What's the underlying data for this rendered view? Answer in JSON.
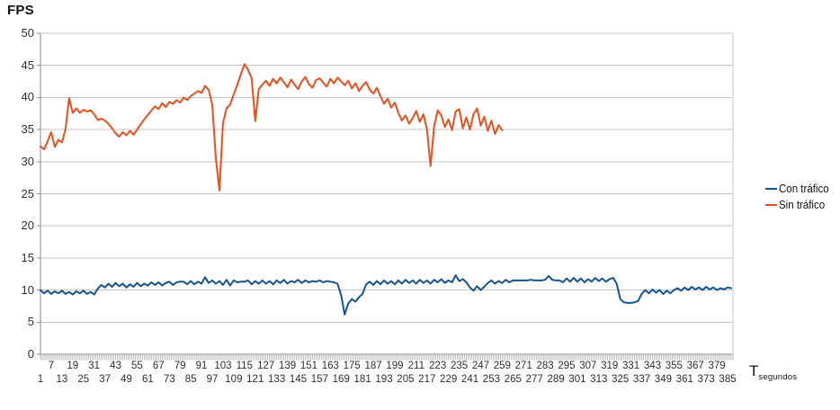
{
  "title": "FPS",
  "x_axis_unit": {
    "main": "T",
    "sub": "segundos"
  },
  "legend": [
    {
      "label": "Con tráfico",
      "color": "#17538F"
    },
    {
      "label": "Sin tráfico",
      "color": "#E8501E"
    }
  ],
  "colors": {
    "grid": "#C6C6C6",
    "axis": "#8C8C8C",
    "tick_comb": "#ABABAB",
    "background": "#FFFFFF"
  },
  "chart_data": {
    "type": "line",
    "title": "FPS",
    "ylabel": "FPS",
    "xlabel": "T segundos",
    "ylim": [
      0,
      50
    ],
    "x_range": [
      1,
      388
    ],
    "grid": true,
    "legend_position": "right",
    "y_ticks": [
      0,
      5,
      10,
      15,
      20,
      25,
      30,
      35,
      40,
      45,
      50
    ],
    "x_tick_rows": {
      "upper": [
        7,
        19,
        31,
        43,
        55,
        67,
        79,
        91,
        103,
        115,
        127,
        139,
        151,
        163,
        175,
        187,
        199,
        211,
        223,
        235,
        247,
        259,
        271,
        283,
        295,
        307,
        319,
        331,
        343,
        355,
        367,
        379
      ],
      "lower": [
        1,
        13,
        25,
        37,
        49,
        61,
        73,
        85,
        97,
        109,
        121,
        133,
        145,
        157,
        169,
        181,
        193,
        205,
        217,
        229,
        241,
        253,
        265,
        277,
        289,
        301,
        313,
        325,
        337,
        349,
        361,
        373,
        385
      ]
    },
    "series": [
      {
        "name": "Con tráfico",
        "color": "#17538F",
        "x_start": 1,
        "x_step": 2,
        "values": [
          10.0,
          9.5,
          9.9,
          9.4,
          9.8,
          9.5,
          9.9,
          9.4,
          9.7,
          9.3,
          9.8,
          9.5,
          9.9,
          9.4,
          9.7,
          9.3,
          10.2,
          10.8,
          10.4,
          11.0,
          10.5,
          11.1,
          10.6,
          11.0,
          10.4,
          10.9,
          10.5,
          11.1,
          10.6,
          11.0,
          10.7,
          11.2,
          10.8,
          11.2,
          10.7,
          11.1,
          11.3,
          10.8,
          11.2,
          11.3,
          11.3,
          10.9,
          11.4,
          10.9,
          11.3,
          11.0,
          12.0,
          11.1,
          11.5,
          11.0,
          11.4,
          10.8,
          11.6,
          10.7,
          11.5,
          11.2,
          11.3,
          11.3,
          11.5,
          10.9,
          11.4,
          11.0,
          11.5,
          11.0,
          11.4,
          10.9,
          11.5,
          11.1,
          11.6,
          11.0,
          11.4,
          11.2,
          11.6,
          11.1,
          11.5,
          11.2,
          11.4,
          11.3,
          11.5,
          11.2,
          11.4,
          11.3,
          11.2,
          11.0,
          9.2,
          6.2,
          7.9,
          8.6,
          8.2,
          8.9,
          9.4,
          10.9,
          11.3,
          10.8,
          11.4,
          10.9,
          11.5,
          11.0,
          11.4,
          10.9,
          11.5,
          11.0,
          11.6,
          11.1,
          11.5,
          11.0,
          11.6,
          11.1,
          11.5,
          11.0,
          11.6,
          11.2,
          11.7,
          11.1,
          11.5,
          11.2,
          12.3,
          11.4,
          11.7,
          11.2,
          10.4,
          9.9,
          10.6,
          10.0,
          10.5,
          11.1,
          11.5,
          11.0,
          11.4,
          11.1,
          11.6,
          11.2,
          11.5,
          11.5,
          11.5,
          11.5,
          11.5,
          11.6,
          11.5,
          11.5,
          11.5,
          11.6,
          12.2,
          11.6,
          11.5,
          11.5,
          11.2,
          11.8,
          11.3,
          11.9,
          11.3,
          11.8,
          11.2,
          11.7,
          11.3,
          11.9,
          11.4,
          11.8,
          11.3,
          11.7,
          11.9,
          11.0,
          8.6,
          8.1,
          8.0,
          8.0,
          8.1,
          8.3,
          9.4,
          10.0,
          9.5,
          10.1,
          9.6,
          10.0,
          9.4,
          9.9,
          9.5,
          10.0,
          10.3,
          9.9,
          10.4,
          10.0,
          10.5,
          10.1,
          10.4,
          10.0,
          10.5,
          10.1,
          10.4,
          10.0,
          10.3,
          10.1,
          10.4,
          10.3
        ]
      },
      {
        "name": "Sin tráfico",
        "color": "#E8501E",
        "x_start": 1,
        "x_step": 2,
        "values": [
          32.4,
          31.9,
          33.2,
          34.6,
          32.3,
          33.4,
          33.0,
          35.1,
          39.9,
          37.6,
          38.3,
          37.6,
          38.1,
          37.8,
          38.0,
          37.4,
          36.5,
          36.7,
          36.4,
          35.9,
          35.2,
          34.4,
          33.9,
          34.6,
          34.1,
          34.8,
          34.2,
          35.0,
          35.8,
          36.6,
          37.3,
          38.0,
          38.6,
          38.2,
          39.1,
          38.5,
          39.3,
          39.0,
          39.6,
          39.2,
          40.0,
          39.6,
          40.2,
          40.6,
          41.0,
          40.7,
          41.8,
          41.2,
          38.9,
          30.5,
          25.5,
          36.0,
          38.3,
          38.9,
          40.5,
          42.0,
          43.6,
          45.2,
          44.3,
          43.0,
          36.3,
          41.3,
          42.0,
          42.6,
          41.8,
          42.9,
          42.2,
          43.1,
          42.4,
          41.6,
          42.8,
          42.0,
          41.3,
          42.5,
          43.2,
          42.1,
          41.5,
          42.7,
          43.0,
          42.3,
          41.7,
          42.9,
          42.2,
          43.1,
          42.5,
          41.9,
          42.6,
          41.4,
          42.2,
          41.0,
          41.8,
          42.4,
          41.2,
          40.6,
          41.5,
          40.2,
          39.0,
          39.8,
          38.4,
          39.2,
          37.6,
          36.4,
          37.2,
          35.9,
          36.8,
          37.9,
          36.2,
          37.4,
          35.0,
          29.3,
          35.5,
          38.0,
          37.2,
          35.4,
          36.6,
          34.9,
          37.8,
          38.2,
          35.2,
          36.9,
          35.0,
          37.4,
          38.3,
          35.6,
          37.0,
          34.8,
          36.4,
          34.3,
          35.7,
          34.9
        ]
      }
    ]
  }
}
